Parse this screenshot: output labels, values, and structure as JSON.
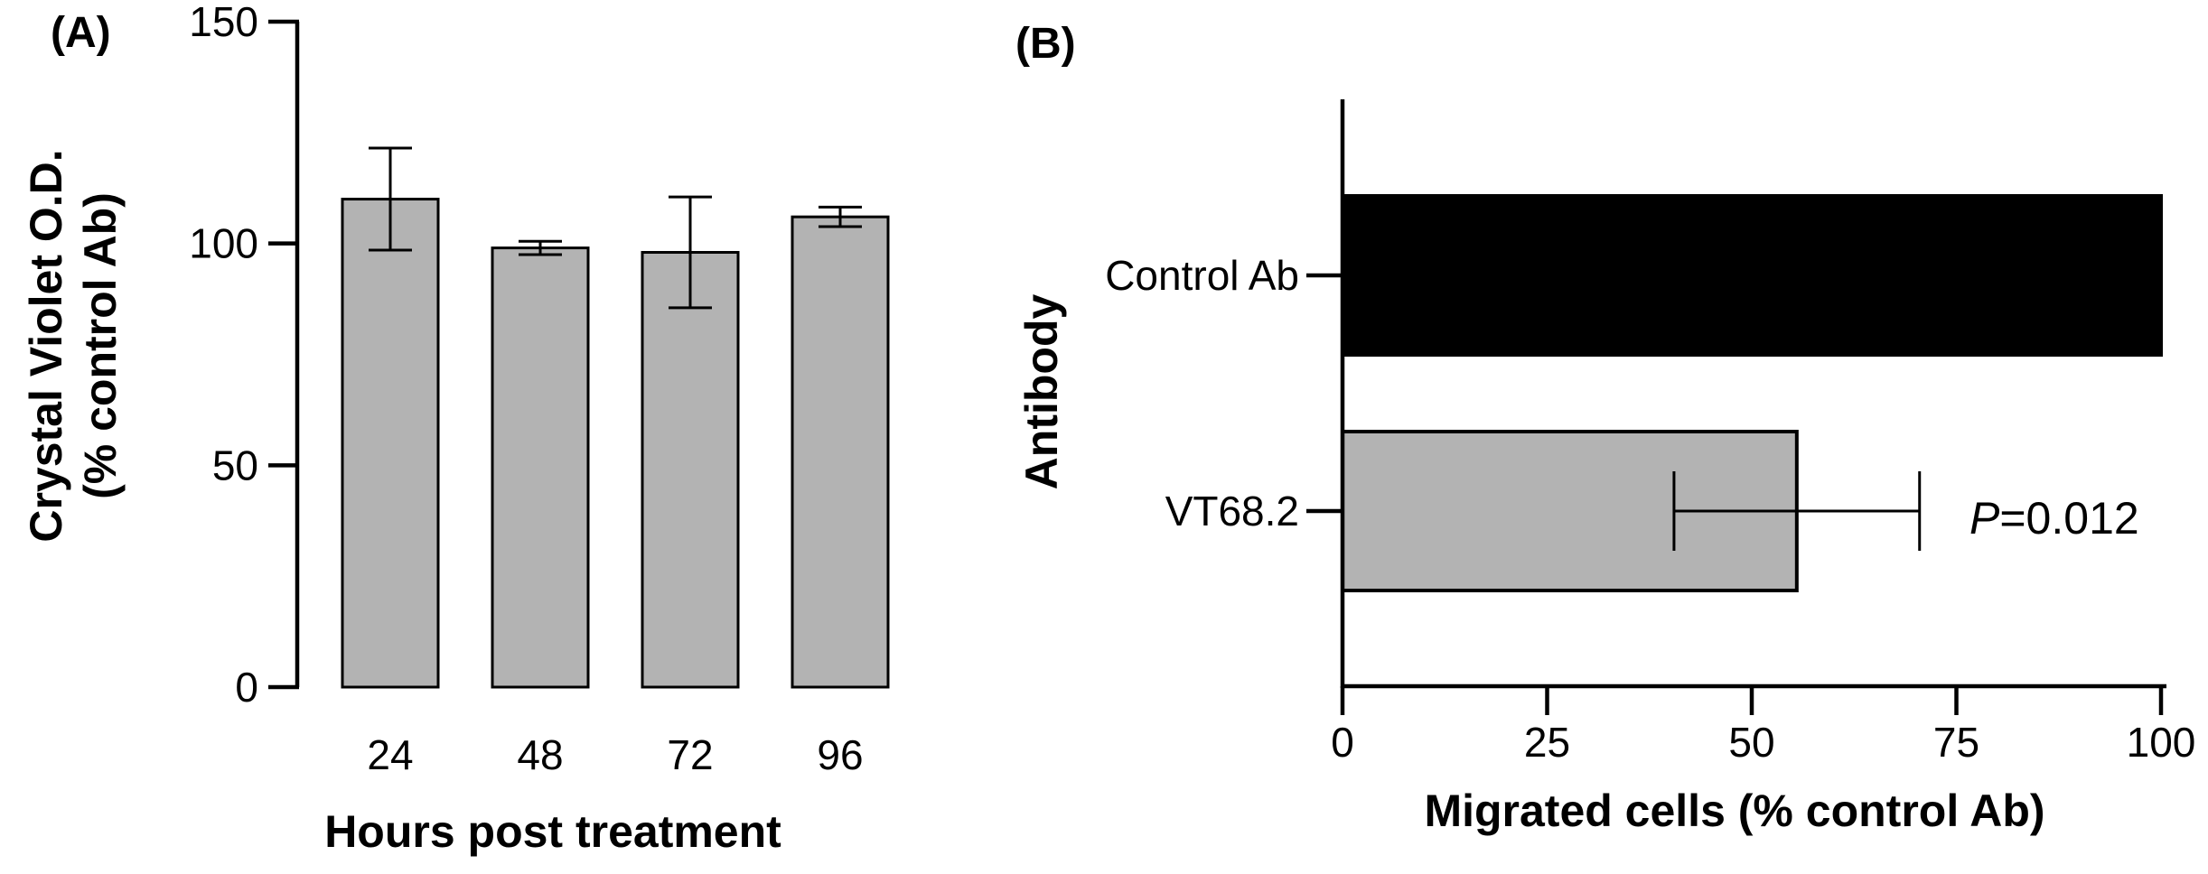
{
  "chart_data": [
    {
      "panel_label": "(A)",
      "type": "bar",
      "orientation": "vertical",
      "categories": [
        "24",
        "48",
        "72",
        "96"
      ],
      "values": [
        110,
        99,
        98,
        106
      ],
      "error": [
        11.5,
        1.5,
        12.5,
        2.2
      ],
      "xlabel": "Hours post treatment",
      "ylabel_line1": "Crystal Violet O.D.",
      "ylabel_line2": "(% control Ab)",
      "ylim": [
        0,
        150
      ],
      "yticks": [
        "0",
        "50",
        "100",
        "150"
      ],
      "ytick_values": [
        0,
        50,
        100,
        150
      ],
      "bar_color": "#b3b3b3",
      "edge_color": "#000000",
      "grid": false
    },
    {
      "panel_label": "(B)",
      "type": "bar",
      "orientation": "horizontal",
      "categories": [
        "Control Ab",
        "VT68.2"
      ],
      "values": [
        100,
        55.5
      ],
      "error": [
        0,
        15
      ],
      "bar_colors": [
        "#000000",
        "#b3b3b3"
      ],
      "xlabel": "Migrated cells (% control Ab)",
      "ylabel": "Antibody",
      "xlim": [
        0,
        100
      ],
      "xticks": [
        "0",
        "25",
        "50",
        "75",
        "100"
      ],
      "xtick_values": [
        0,
        25,
        50,
        75,
        100
      ],
      "annotation_p": "P",
      "annotation_value": "=0.012",
      "grid": false
    }
  ]
}
